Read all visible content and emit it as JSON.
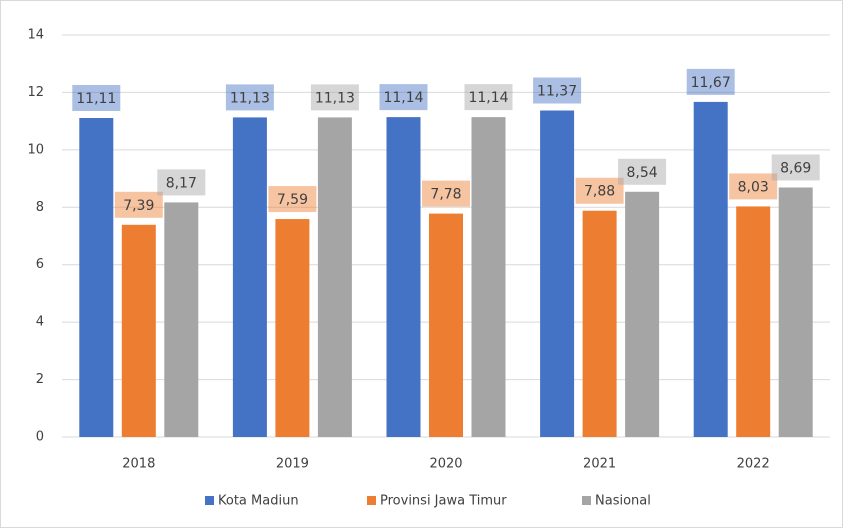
{
  "chart_data": {
    "type": "bar",
    "categories": [
      "2018",
      "2019",
      "2020",
      "2021",
      "2022"
    ],
    "series": [
      {
        "name": "Kota Madiun",
        "color": "#4472c4",
        "values": [
          11.11,
          11.13,
          11.14,
          11.37,
          11.67
        ],
        "value_labels": [
          "11,11",
          "11,13",
          "11,14",
          "11,37",
          "11,67"
        ]
      },
      {
        "name": "Provinsi Jawa Timur",
        "color": "#ed7d31",
        "values": [
          7.39,
          7.59,
          7.78,
          7.88,
          8.03
        ],
        "value_labels": [
          "7,39",
          "7,59",
          "7,78",
          "7,88",
          "8,03"
        ]
      },
      {
        "name": "Nasional",
        "color": "#a5a5a5",
        "values": [
          8.17,
          11.13,
          11.14,
          8.54,
          8.69
        ],
        "value_labels": [
          "8,17",
          "11,13",
          "11,14",
          "8,54",
          "8,69"
        ]
      }
    ],
    "ylim": [
      0,
      14
    ],
    "yticks": [
      0,
      2,
      4,
      6,
      8,
      10,
      12,
      14
    ],
    "grid": true,
    "legend": "bottom"
  }
}
